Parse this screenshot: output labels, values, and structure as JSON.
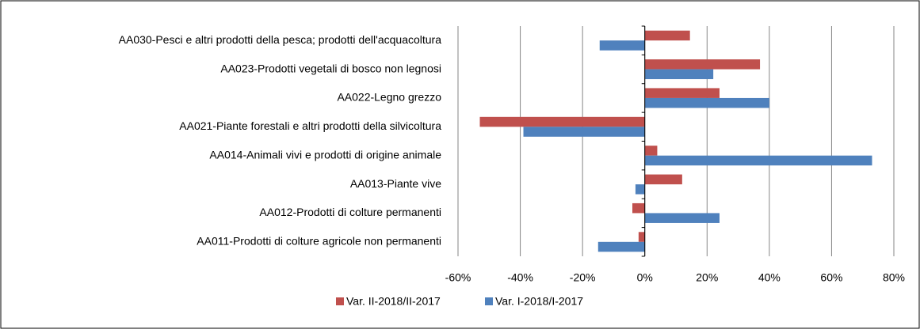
{
  "chart_data": {
    "type": "hbar",
    "categories": [
      "AA030-Pesci e altri prodotti della pesca; prodotti dell'acquacoltura",
      "AA023-Prodotti vegetali di bosco non legnosi",
      "AA022-Legno grezzo",
      "AA021-Piante forestali e altri prodotti della silvicoltura",
      "AA014-Animali vivi e prodotti di origine animale",
      "AA013-Piante vive",
      "AA012-Prodotti di colture permanenti",
      "AA011-Prodotti di colture agricole non permanenti"
    ],
    "series": [
      {
        "name": "Var. II-2018/II-2017",
        "color": "#c0504d",
        "values": [
          14.5,
          37,
          24,
          -53,
          4,
          12,
          -4,
          -2
        ]
      },
      {
        "name": "Var. I-2018/I-2017",
        "color": "#4f81bd",
        "values": [
          -14.5,
          22,
          40,
          -39,
          73,
          -3,
          24,
          -15
        ]
      }
    ],
    "xlim": [
      -60,
      80
    ],
    "xticks": [
      {
        "value": -60,
        "label": "-60%"
      },
      {
        "value": -40,
        "label": "-40%"
      },
      {
        "value": -20,
        "label": "-20%"
      },
      {
        "value": 0,
        "label": "0%"
      },
      {
        "value": 20,
        "label": "20%"
      },
      {
        "value": 40,
        "label": "40%"
      },
      {
        "value": 60,
        "label": "60%"
      },
      {
        "value": 80,
        "label": "80%"
      }
    ],
    "grid": true,
    "legend": "bottom"
  }
}
